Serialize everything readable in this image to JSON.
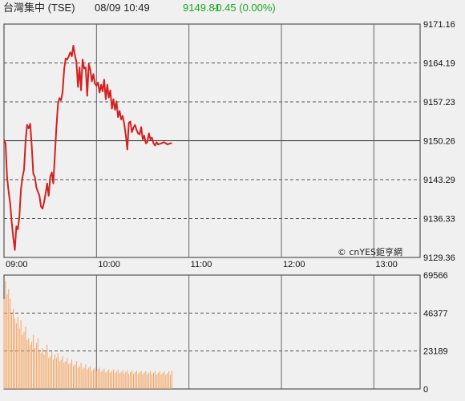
{
  "header": {
    "name": "台灣集中 (TSE)",
    "datetime": "08/09 10:49",
    "price": "9149.81",
    "change": "-0.45 (0.00%)",
    "change_color": "#17a81f"
  },
  "watermark": "© cnYES鉅亨網",
  "colors": {
    "price_line": "#d42020",
    "volume_bar": "#f4a460",
    "grid": "#555555"
  },
  "chart_data": [
    {
      "type": "line",
      "x_tick_labels": [
        "09:00",
        "10:00",
        "11:00",
        "12:00",
        "13:00"
      ],
      "x_ticks": [
        "09:00",
        "10:00",
        "11:00",
        "12:00",
        "13:00"
      ],
      "x_range": [
        "09:00",
        "13:30"
      ],
      "y_tick_labels": [
        "9171.16",
        "9164.19",
        "9157.23",
        "9150.26",
        "9143.29",
        "9136.33",
        "9129.36"
      ],
      "ylim": [
        9129.36,
        9171.16
      ],
      "reference_line": 9150.26,
      "grid": true,
      "series": [
        {
          "x": [
            "09:00",
            "09:01",
            "09:02",
            "09:03",
            "09:04",
            "09:05",
            "09:06",
            "09:07",
            "09:08",
            "09:09",
            "09:10",
            "09:11",
            "09:12",
            "09:13",
            "09:14",
            "09:15",
            "09:16",
            "09:17",
            "09:18",
            "09:19",
            "09:20",
            "09:21",
            "09:22",
            "09:23",
            "09:24",
            "09:25",
            "09:26",
            "09:27",
            "09:28",
            "09:29",
            "09:30",
            "09:31",
            "09:32",
            "09:33",
            "09:34",
            "09:35",
            "09:36",
            "09:37",
            "09:38",
            "09:39",
            "09:40",
            "09:41",
            "09:42",
            "09:43",
            "09:44",
            "09:45",
            "09:46",
            "09:47",
            "09:48",
            "09:49",
            "09:50",
            "09:51",
            "09:52",
            "09:53",
            "09:54",
            "09:55",
            "09:56",
            "09:57",
            "09:58",
            "09:59",
            "10:00",
            "10:01",
            "10:02",
            "10:03",
            "10:04",
            "10:05",
            "10:06",
            "10:07",
            "10:08",
            "10:09",
            "10:10",
            "10:11",
            "10:12",
            "10:13",
            "10:14",
            "10:15",
            "10:16",
            "10:17",
            "10:18",
            "10:19",
            "10:20",
            "10:21",
            "10:22",
            "10:23",
            "10:24",
            "10:25",
            "10:26",
            "10:27",
            "10:28",
            "10:29",
            "10:30",
            "10:31",
            "10:32",
            "10:33",
            "10:34",
            "10:35",
            "10:36",
            "10:37",
            "10:38",
            "10:39",
            "10:40",
            "10:41",
            "10:42",
            "10:43",
            "10:44",
            "10:45",
            "10:46",
            "10:47",
            "10:48",
            "10:49"
          ],
          "values": [
            9150.4,
            9149.8,
            9143.8,
            9141.1,
            9139.0,
            9135.7,
            9133.0,
            9130.7,
            9134.9,
            9134.4,
            9136.7,
            9141.5,
            9143.8,
            9145.1,
            9150.2,
            9153.1,
            9152.5,
            9153.3,
            9149.3,
            9144.4,
            9143.8,
            9141.9,
            9141.1,
            9140.4,
            9138.5,
            9138.1,
            9139.3,
            9140.8,
            9142.6,
            9140.4,
            9143.8,
            9144.6,
            9142.6,
            9147.6,
            9152.8,
            9156.8,
            9157.9,
            9157.5,
            9158.9,
            9163.0,
            9165.0,
            9164.8,
            9165.4,
            9166.1,
            9165.4,
            9167.3,
            9165.6,
            9164.4,
            9159.9,
            9163.4,
            9159.3,
            9164.8,
            9163.2,
            9163.4,
            9158.3,
            9164.0,
            9163.0,
            9160.9,
            9162.2,
            9160.5,
            9160.1,
            9160.7,
            9158.9,
            9160.3,
            9159.1,
            9161.2,
            9157.7,
            9160.3,
            9158.0,
            9159.3,
            9156.0,
            9157.7,
            9155.8,
            9157.3,
            9154.5,
            9155.6,
            9154.1,
            9154.7,
            9153.3,
            9151.3,
            9148.7,
            9153.5,
            9153.7,
            9151.8,
            9152.6,
            9153.1,
            9152.2,
            9151.6,
            9151.4,
            9152.7,
            9150.5,
            9151.2,
            9149.8,
            9150.0,
            9151.6,
            9150.5,
            9150.8,
            9149.8,
            9149.4,
            9150.0,
            9149.6,
            9149.7,
            9149.8,
            9149.9,
            9150.0,
            9149.8,
            9149.6,
            9149.7,
            9149.8,
            9149.81
          ]
        }
      ]
    },
    {
      "type": "bar",
      "y_tick_labels": [
        "69566",
        "46377",
        "23189",
        "0"
      ],
      "ylim": [
        0,
        69566
      ],
      "grid": true,
      "values": [
        55000,
        66000,
        58000,
        61000,
        55000,
        46000,
        49000,
        43000,
        40000,
        44000,
        37000,
        42000,
        33000,
        35000,
        38000,
        30000,
        31000,
        27000,
        29000,
        33000,
        25000,
        28000,
        31000,
        24000,
        22000,
        25000,
        21000,
        23000,
        27000,
        19000,
        20000,
        23000,
        18000,
        21000,
        19000,
        22000,
        17000,
        18000,
        20000,
        16000,
        17000,
        19000,
        15000,
        16000,
        18000,
        14000,
        15000,
        17000,
        13000,
        14000,
        16000,
        12000,
        13000,
        15000,
        12000,
        13000,
        14000,
        11000,
        12000,
        13000,
        11000,
        12000,
        13000,
        10500,
        11500,
        12500,
        10000,
        11000,
        12000,
        10000,
        11000,
        12000,
        9800,
        10800,
        11800,
        9500,
        10500,
        11500,
        9400,
        10400,
        11400,
        9300,
        10300,
        11300,
        9200,
        10200,
        11200,
        9100,
        10100,
        11100,
        9000,
        10000,
        11000,
        9000,
        10000,
        11000,
        8900,
        9900,
        10900,
        8800,
        9800,
        10800,
        8800,
        9800,
        10800,
        8700,
        9700,
        10700,
        8700,
        11200
      ]
    }
  ]
}
